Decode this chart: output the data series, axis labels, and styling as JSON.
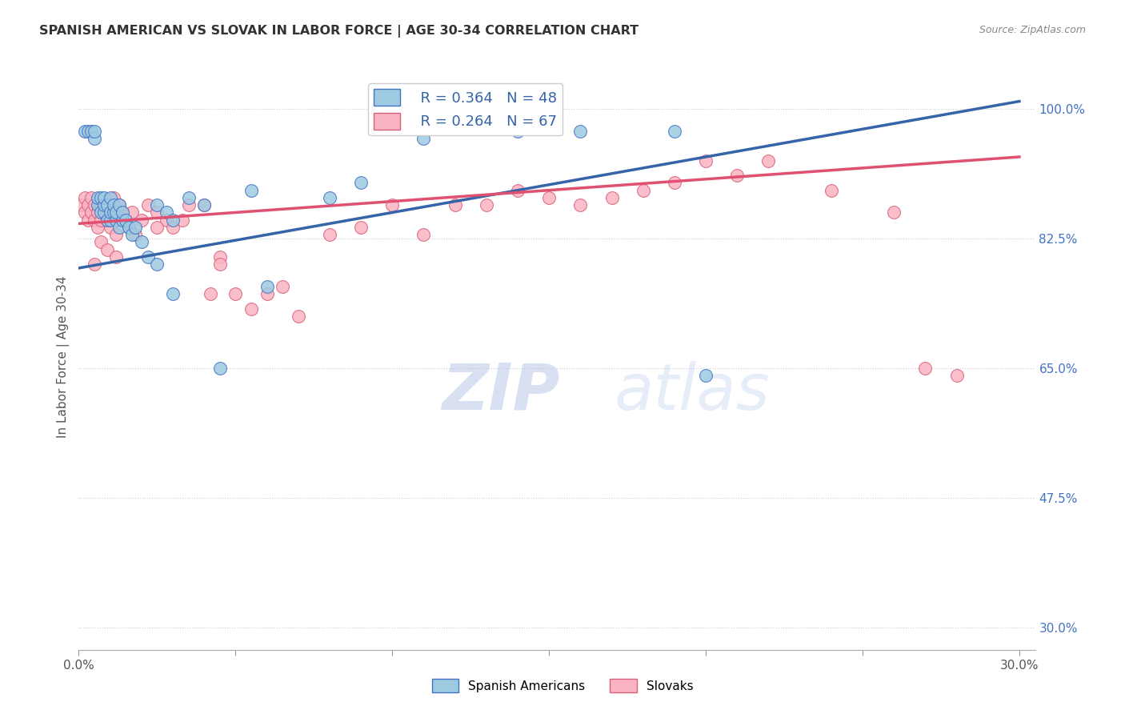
{
  "title": "SPANISH AMERICAN VS SLOVAK IN LABOR FORCE | AGE 30-34 CORRELATION CHART",
  "source": "Source: ZipAtlas.com",
  "ylabel": "In Labor Force | Age 30-34",
  "xlim": [
    0.0,
    0.305
  ],
  "ylim": [
    0.27,
    1.06
  ],
  "xticks": [
    0.0,
    0.05,
    0.1,
    0.15,
    0.2,
    0.25,
    0.3
  ],
  "xlabels": [
    "0.0%",
    "",
    "",
    "",
    "",
    "",
    "30.0%"
  ],
  "yticks_right": [
    1.0,
    0.825,
    0.65,
    0.475,
    0.3
  ],
  "ytick_right_labels": [
    "100.0%",
    "82.5%",
    "65.0%",
    "47.5%",
    "30.0%"
  ],
  "legend_blue_r": "R = 0.364",
  "legend_blue_n": "N = 48",
  "legend_pink_r": "R = 0.264",
  "legend_pink_n": "N = 67",
  "blue_scatter_color": "#9ecae1",
  "blue_edge_color": "#4472c4",
  "blue_line_color": "#3564a8",
  "pink_scatter_color": "#fbb4c4",
  "pink_edge_color": "#d9607a",
  "pink_line_color": "#e05070",
  "right_tick_color": "#4472c4",
  "watermark_color": "#c8d8f0",
  "sa_x": [
    0.002,
    0.003,
    0.004,
    0.005,
    0.005,
    0.006,
    0.006,
    0.007,
    0.007,
    0.008,
    0.008,
    0.008,
    0.009,
    0.009,
    0.01,
    0.01,
    0.01,
    0.011,
    0.011,
    0.012,
    0.012,
    0.013,
    0.013,
    0.014,
    0.014,
    0.015,
    0.016,
    0.017,
    0.018,
    0.02,
    0.022,
    0.025,
    0.028,
    0.03,
    0.035,
    0.04,
    0.045,
    0.055,
    0.06,
    0.08,
    0.09,
    0.11,
    0.14,
    0.16,
    0.19,
    0.2,
    0.025,
    0.03
  ],
  "sa_y": [
    0.97,
    0.97,
    0.97,
    0.96,
    0.97,
    0.87,
    0.88,
    0.86,
    0.88,
    0.86,
    0.87,
    0.88,
    0.85,
    0.87,
    0.85,
    0.86,
    0.88,
    0.86,
    0.87,
    0.85,
    0.86,
    0.84,
    0.87,
    0.85,
    0.86,
    0.85,
    0.84,
    0.83,
    0.84,
    0.82,
    0.8,
    0.87,
    0.86,
    0.85,
    0.88,
    0.87,
    0.65,
    0.89,
    0.76,
    0.88,
    0.9,
    0.96,
    0.97,
    0.97,
    0.97,
    0.64,
    0.79,
    0.75
  ],
  "sk_x": [
    0.001,
    0.002,
    0.002,
    0.003,
    0.003,
    0.004,
    0.004,
    0.005,
    0.005,
    0.006,
    0.006,
    0.007,
    0.007,
    0.008,
    0.008,
    0.009,
    0.009,
    0.01,
    0.01,
    0.011,
    0.012,
    0.013,
    0.014,
    0.015,
    0.016,
    0.017,
    0.018,
    0.02,
    0.022,
    0.025,
    0.028,
    0.03,
    0.033,
    0.035,
    0.04,
    0.042,
    0.045,
    0.05,
    0.055,
    0.06,
    0.065,
    0.07,
    0.08,
    0.09,
    0.1,
    0.11,
    0.12,
    0.13,
    0.14,
    0.15,
    0.16,
    0.17,
    0.18,
    0.19,
    0.2,
    0.21,
    0.22,
    0.24,
    0.26,
    0.27,
    0.28,
    0.005,
    0.007,
    0.009,
    0.012,
    0.025,
    0.045
  ],
  "sk_y": [
    0.87,
    0.86,
    0.88,
    0.85,
    0.87,
    0.86,
    0.88,
    0.85,
    0.87,
    0.84,
    0.86,
    0.87,
    0.85,
    0.86,
    0.87,
    0.85,
    0.86,
    0.84,
    0.87,
    0.88,
    0.83,
    0.87,
    0.86,
    0.85,
    0.84,
    0.86,
    0.83,
    0.85,
    0.87,
    0.86,
    0.85,
    0.84,
    0.85,
    0.87,
    0.87,
    0.75,
    0.8,
    0.75,
    0.73,
    0.75,
    0.76,
    0.72,
    0.83,
    0.84,
    0.87,
    0.83,
    0.87,
    0.87,
    0.89,
    0.88,
    0.87,
    0.88,
    0.89,
    0.9,
    0.93,
    0.91,
    0.93,
    0.89,
    0.86,
    0.65,
    0.64,
    0.79,
    0.82,
    0.81,
    0.8,
    0.84,
    0.79
  ],
  "blue_trend_x0": 0.0,
  "blue_trend_y0": 0.785,
  "blue_trend_x1": 0.3,
  "blue_trend_y1": 1.01,
  "pink_trend_x0": 0.0,
  "pink_trend_y0": 0.845,
  "pink_trend_x1": 0.3,
  "pink_trend_y1": 0.935
}
